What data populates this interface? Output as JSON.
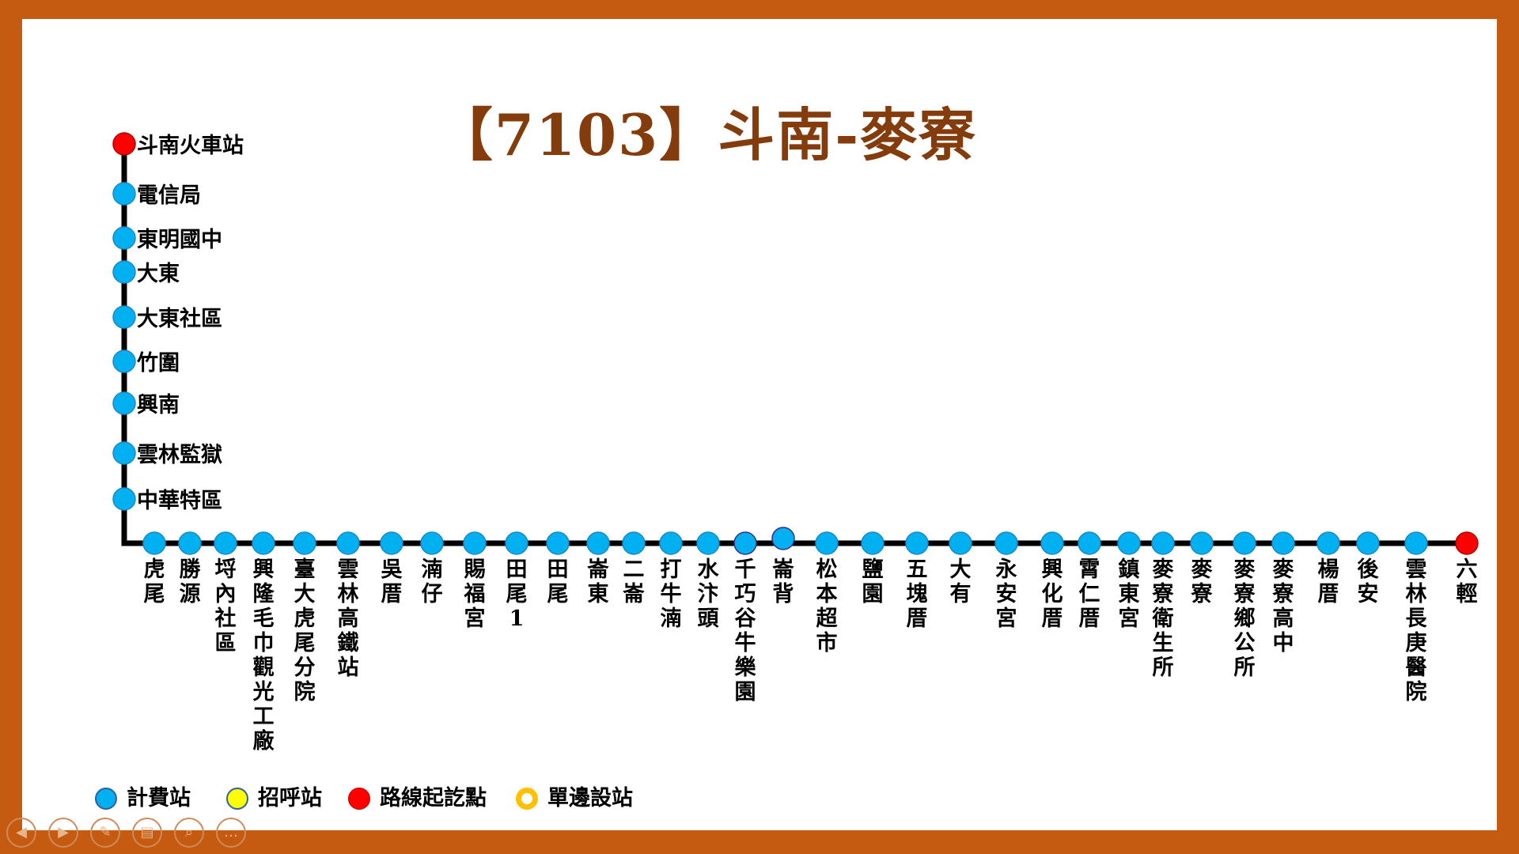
{
  "title": "【7103】斗南-麥寮",
  "colors": {
    "charge_stop": "#00b0f0",
    "flag_stop": "#ffff00",
    "terminal": "#ff0000",
    "single_side_ring": "#ffc000",
    "route_line": "#000000",
    "frame": "#c55a11",
    "title": "#843c0c"
  },
  "route": {
    "vertical_stops": [
      {
        "name": "斗南火車站",
        "type": "terminal"
      },
      {
        "name": "電信局",
        "type": "charge"
      },
      {
        "name": "東明國中",
        "type": "charge"
      },
      {
        "name": "大東",
        "type": "charge"
      },
      {
        "name": "大東社區",
        "type": "charge"
      },
      {
        "name": "竹圍",
        "type": "charge"
      },
      {
        "name": "興南",
        "type": "charge"
      },
      {
        "name": "雲林監獄",
        "type": "charge"
      },
      {
        "name": "中華特區",
        "type": "charge"
      }
    ],
    "horizontal_stops": [
      {
        "name": "虎尾",
        "type": "charge"
      },
      {
        "name": "勝源",
        "type": "charge"
      },
      {
        "name": "埒內社區",
        "type": "charge"
      },
      {
        "name": "興隆毛巾觀光工廠",
        "type": "charge"
      },
      {
        "name": "臺大虎尾分院",
        "type": "charge"
      },
      {
        "name": "雲林高鐵站",
        "type": "charge"
      },
      {
        "name": "吳厝",
        "type": "charge"
      },
      {
        "name": "湳仔",
        "type": "charge"
      },
      {
        "name": "賜福宮",
        "type": "charge"
      },
      {
        "name": "田尾1",
        "type": "charge"
      },
      {
        "name": "田尾",
        "type": "charge"
      },
      {
        "name": "崙東",
        "type": "charge"
      },
      {
        "name": "二崙",
        "type": "charge"
      },
      {
        "name": "打牛湳",
        "type": "charge"
      },
      {
        "name": "水汴頭",
        "type": "charge"
      },
      {
        "name": "千巧谷牛樂園",
        "type": "charge_single_side"
      },
      {
        "name": "崙背",
        "type": "charge_single_side"
      },
      {
        "name": "松本超市",
        "type": "charge"
      },
      {
        "name": "鹽園",
        "type": "charge"
      },
      {
        "name": "五塊厝",
        "type": "charge"
      },
      {
        "name": "大有",
        "type": "charge"
      },
      {
        "name": "永安宮",
        "type": "charge"
      },
      {
        "name": "興化厝",
        "type": "charge"
      },
      {
        "name": "霄仁厝",
        "type": "charge"
      },
      {
        "name": "鎮東宮",
        "type": "charge"
      },
      {
        "name": "麥寮衛生所",
        "type": "charge"
      },
      {
        "name": "麥寮",
        "type": "charge"
      },
      {
        "name": "麥寮鄉公所",
        "type": "charge"
      },
      {
        "name": "麥寮高中",
        "type": "charge"
      },
      {
        "name": "楊厝",
        "type": "charge"
      },
      {
        "name": "後安",
        "type": "charge"
      },
      {
        "name": "雲林長庚醫院",
        "type": "charge"
      },
      {
        "name": "六輕",
        "type": "terminal"
      }
    ]
  },
  "legend": [
    {
      "label": "計費站",
      "type": "charge"
    },
    {
      "label": "招呼站",
      "type": "flag"
    },
    {
      "label": "路線起訖點",
      "type": "terminal"
    },
    {
      "label": "單邊設站",
      "type": "single_side"
    }
  ],
  "toolbar": [
    {
      "icon": "prev-arrow-icon",
      "glyph": "◀"
    },
    {
      "icon": "next-arrow-icon",
      "glyph": "▶"
    },
    {
      "icon": "pen-icon",
      "glyph": "✎"
    },
    {
      "icon": "slides-icon",
      "glyph": "▤"
    },
    {
      "icon": "zoom-icon",
      "glyph": "⌕"
    },
    {
      "icon": "more-icon",
      "glyph": "…"
    }
  ]
}
